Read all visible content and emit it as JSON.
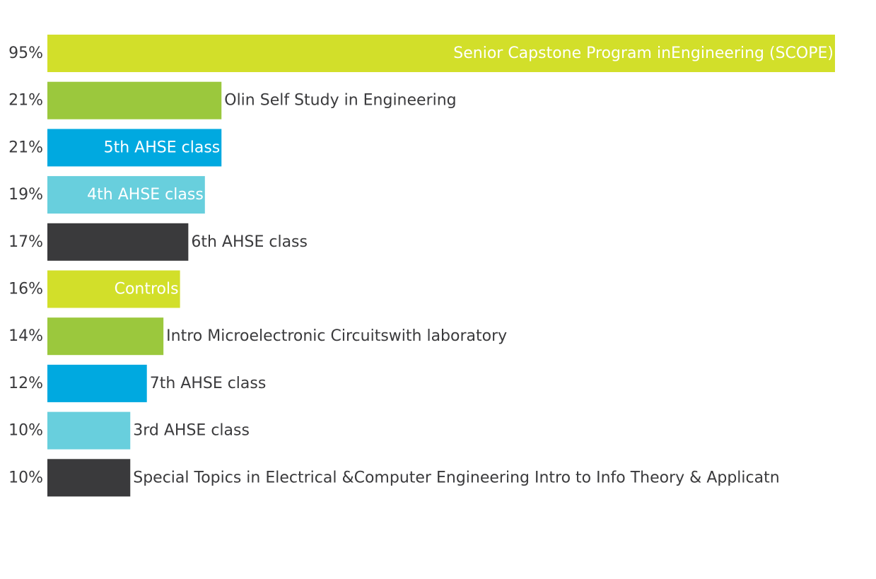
{
  "chart_data": {
    "type": "bar",
    "orientation": "horizontal",
    "categories": [
      "Senior Capstone Program inEngineering (SCOPE)",
      "Olin Self Study in Engineering",
      "5th AHSE class",
      "4th AHSE class",
      "6th AHSE class",
      "Controls",
      "Intro Microelectronic Circuitswith laboratory",
      "7th AHSE class",
      "3rd AHSE class",
      "Special Topics in Electrical &Computer Engineering Intro to Info Theory & Applicatn"
    ],
    "values": [
      95,
      21,
      21,
      19,
      17,
      16,
      14,
      12,
      10,
      10
    ],
    "value_labels": [
      "95%",
      "21%",
      "21%",
      "19%",
      "17%",
      "16%",
      "14%",
      "12%",
      "10%",
      "10%"
    ],
    "bar_colors": [
      "#d2df2a",
      "#9bc83d",
      "#00a9e0",
      "#68cfdd",
      "#3a3a3c",
      "#d2df2a",
      "#9bc83d",
      "#00a9e0",
      "#68cfdd",
      "#3a3a3c"
    ],
    "label_inside": [
      true,
      false,
      true,
      true,
      false,
      true,
      false,
      false,
      false,
      false
    ],
    "inside_label_color": "#ffffff",
    "outside_label_color": "#3a3a3c",
    "xlim": [
      0,
      95
    ],
    "title": "",
    "xlabel": "",
    "ylabel": "",
    "grid": false,
    "legend": "none"
  }
}
